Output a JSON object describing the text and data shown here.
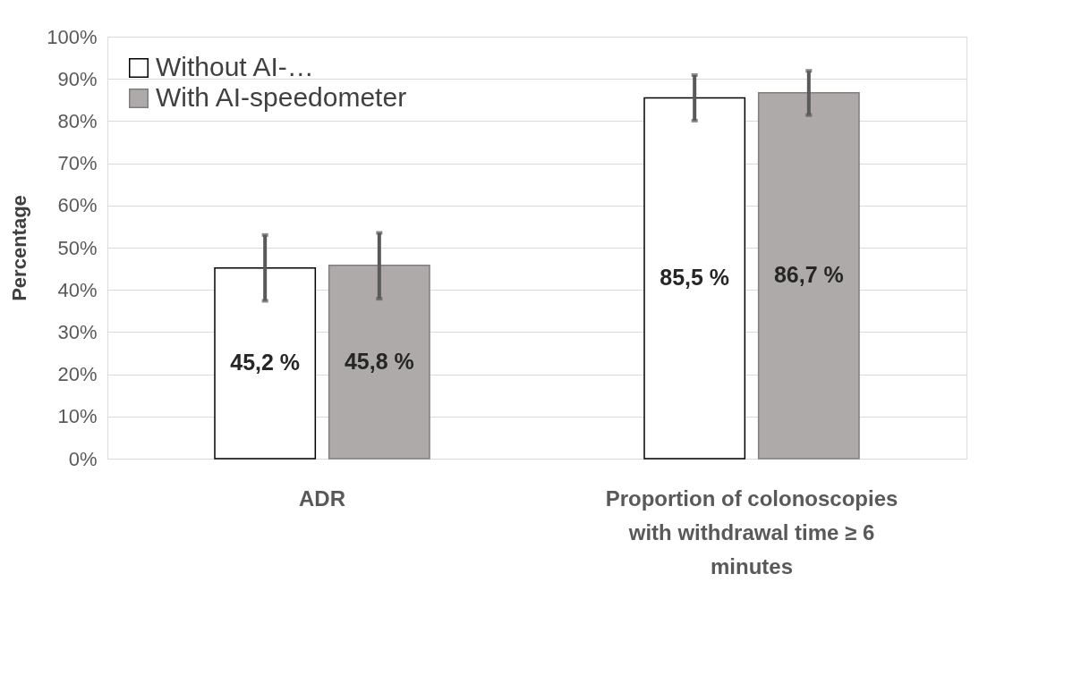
{
  "chart_data": {
    "type": "bar",
    "ylabel": "Percentage",
    "categories": [
      "ADR",
      "Proportion of colonoscopies with withdrawal time ≥ 6 minutes"
    ],
    "series": [
      {
        "name": "Without AI-…",
        "color": "#ffffff",
        "values": [
          45.2,
          85.5
        ],
        "errors": [
          [
            37.4,
            53.0
          ],
          [
            80.1,
            90.9
          ]
        ],
        "value_labels": [
          "45,2 %",
          "85,5 %"
        ]
      },
      {
        "name": "With AI-speedometer",
        "color": "#aeaaaa",
        "values": [
          45.8,
          86.7
        ],
        "errors": [
          [
            37.9,
            53.5
          ],
          [
            81.4,
            91.9
          ]
        ],
        "value_labels": [
          "45,8 %",
          "86,7 %"
        ]
      }
    ],
    "ylim": [
      0,
      100
    ],
    "yticks": [
      {
        "value": 0,
        "label": "0%"
      },
      {
        "value": 10,
        "label": "10%"
      },
      {
        "value": 20,
        "label": "20%"
      },
      {
        "value": 30,
        "label": "30%"
      },
      {
        "value": 40,
        "label": "40%"
      },
      {
        "value": 50,
        "label": "50%"
      },
      {
        "value": 60,
        "label": "60%"
      },
      {
        "value": 70,
        "label": "70%"
      },
      {
        "value": 80,
        "label": "80%"
      },
      {
        "value": 90,
        "label": "90%"
      },
      {
        "value": 100,
        "label": "100%"
      }
    ],
    "grid": "y",
    "legend": "top left"
  }
}
